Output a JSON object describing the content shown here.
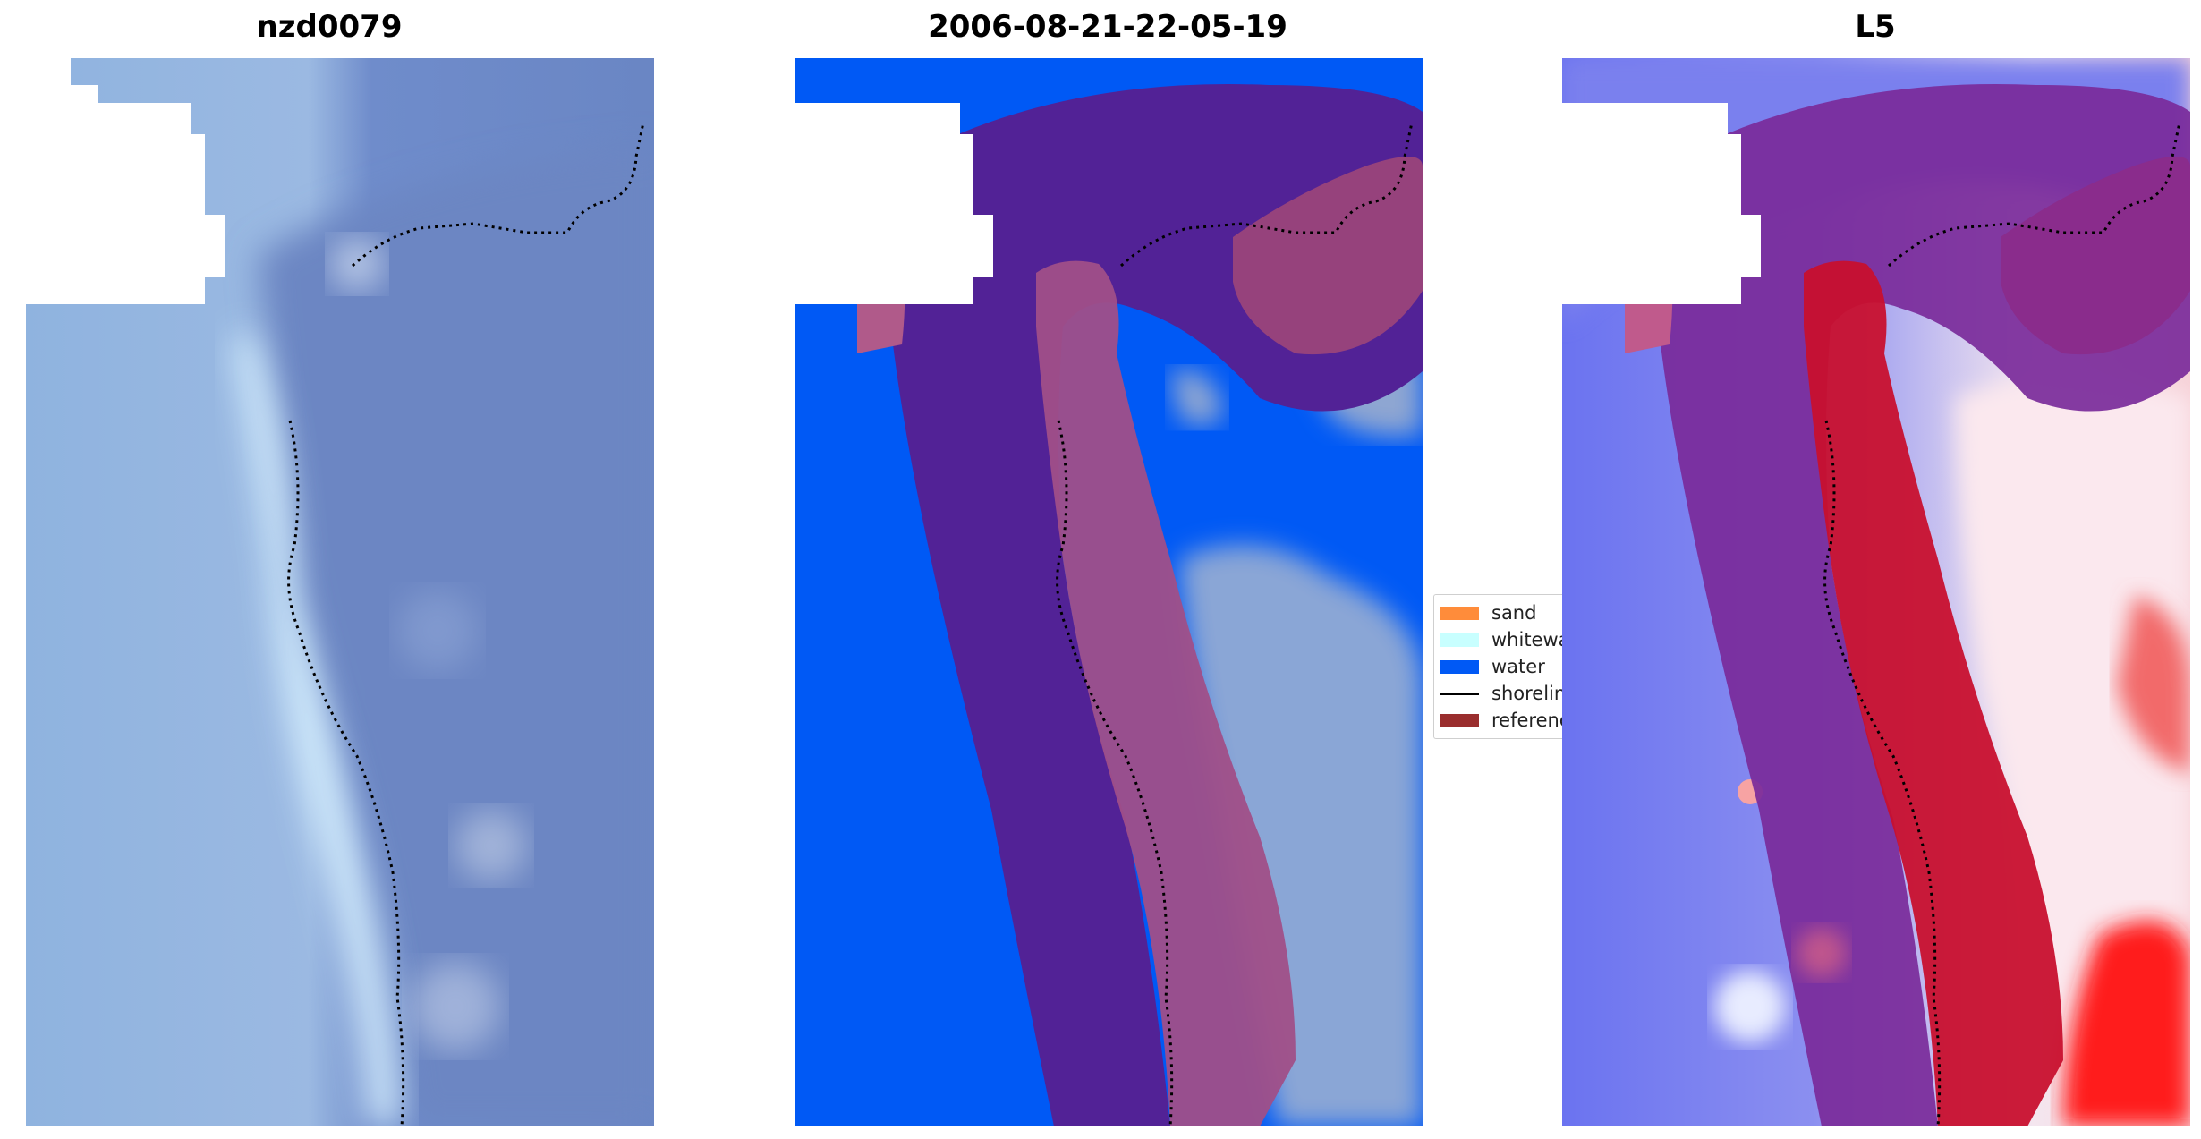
{
  "panels": [
    {
      "title": "nzd0079"
    },
    {
      "title": "2006-08-21-22-05-19"
    },
    {
      "title": "L5"
    }
  ],
  "legend": {
    "items": [
      {
        "label": "sand",
        "color": "#ff8c3a",
        "kind": "patch"
      },
      {
        "label": "whitewater",
        "color": "#c8ffff",
        "kind": "patch"
      },
      {
        "label": "water",
        "color": "#0059f5",
        "kind": "patch"
      },
      {
        "label": "shoreline",
        "color": "#000000",
        "kind": "line"
      },
      {
        "label": "reference",
        "color": "#9a2e2e",
        "kind": "patch"
      }
    ]
  },
  "colors": {
    "water": "#0059f5",
    "buffer": "#522296",
    "reference_overlay": "#b05a8a",
    "no_data": "#ffffff",
    "shoreline": "#000000"
  }
}
